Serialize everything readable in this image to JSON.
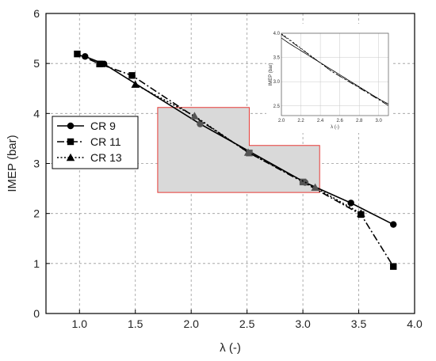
{
  "chart_data": {
    "type": "line",
    "title": "",
    "xlabel": "λ (-)",
    "ylabel": "IMEP (bar)",
    "xlim": [
      0.7,
      4.0
    ],
    "ylim": [
      0,
      6
    ],
    "xticks": [
      "1.0",
      "1.5",
      "2.0",
      "2.5",
      "3.0",
      "3.5",
      "4.0"
    ],
    "yticks": [
      "0",
      "1",
      "2",
      "3",
      "4",
      "5",
      "6"
    ],
    "grid": true,
    "legend_position": "left-middle",
    "highlight_region_color": "#e53935",
    "series": [
      {
        "name": "CR 9",
        "marker": "circle",
        "line_style": "solid",
        "x": [
          1.05,
          1.22,
          2.08,
          3.02,
          3.43,
          3.81
        ],
        "y": [
          5.14,
          4.99,
          3.79,
          2.62,
          2.21,
          1.78
        ]
      },
      {
        "name": "CR 11",
        "marker": "square",
        "line_style": "dash-dot",
        "x": [
          0.98,
          1.18,
          1.47,
          2.52,
          3.0,
          3.52,
          3.81
        ],
        "y": [
          5.19,
          4.99,
          4.76,
          3.21,
          2.63,
          1.98,
          0.94
        ]
      },
      {
        "name": "CR 13",
        "marker": "triangle",
        "line_style": "dotted",
        "x": [
          1.5,
          2.03,
          2.51,
          3.11,
          3.52
        ],
        "y": [
          4.58,
          3.95,
          3.22,
          2.52,
          2.0
        ]
      }
    ],
    "inset": {
      "xlabel": "λ (-)",
      "ylabel": "IMEP (bar)",
      "xlim": [
        2.0,
        3.1
      ],
      "ylim": [
        2.3,
        4.0
      ],
      "xticks": [
        "2.0",
        "2.2",
        "2.4",
        "2.6",
        "2.8",
        "3.0"
      ],
      "yticks": [
        "2.5",
        "3.0",
        "3.5",
        "4.0"
      ]
    }
  }
}
